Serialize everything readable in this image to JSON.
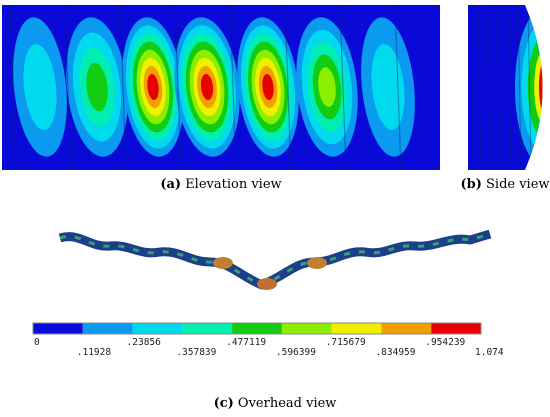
{
  "figures": [
    {
      "label": "(a)",
      "caption": "Elevation view"
    },
    {
      "label": "(b)",
      "caption": "Side view"
    },
    {
      "label": "(c)",
      "caption": "Overhead view"
    }
  ],
  "colorbar": {
    "colors": [
      "#0a0ad8",
      "#0a9af0",
      "#00d9ee",
      "#00eeb0",
      "#11cc11",
      "#8cee00",
      "#f0f000",
      "#f0a000",
      "#e80000"
    ],
    "labels": [
      "0",
      ".11928",
      ".23856",
      ".357839",
      ".477119",
      ".596399",
      ".715679",
      ".834959",
      ".954239",
      "1.074"
    ]
  }
}
